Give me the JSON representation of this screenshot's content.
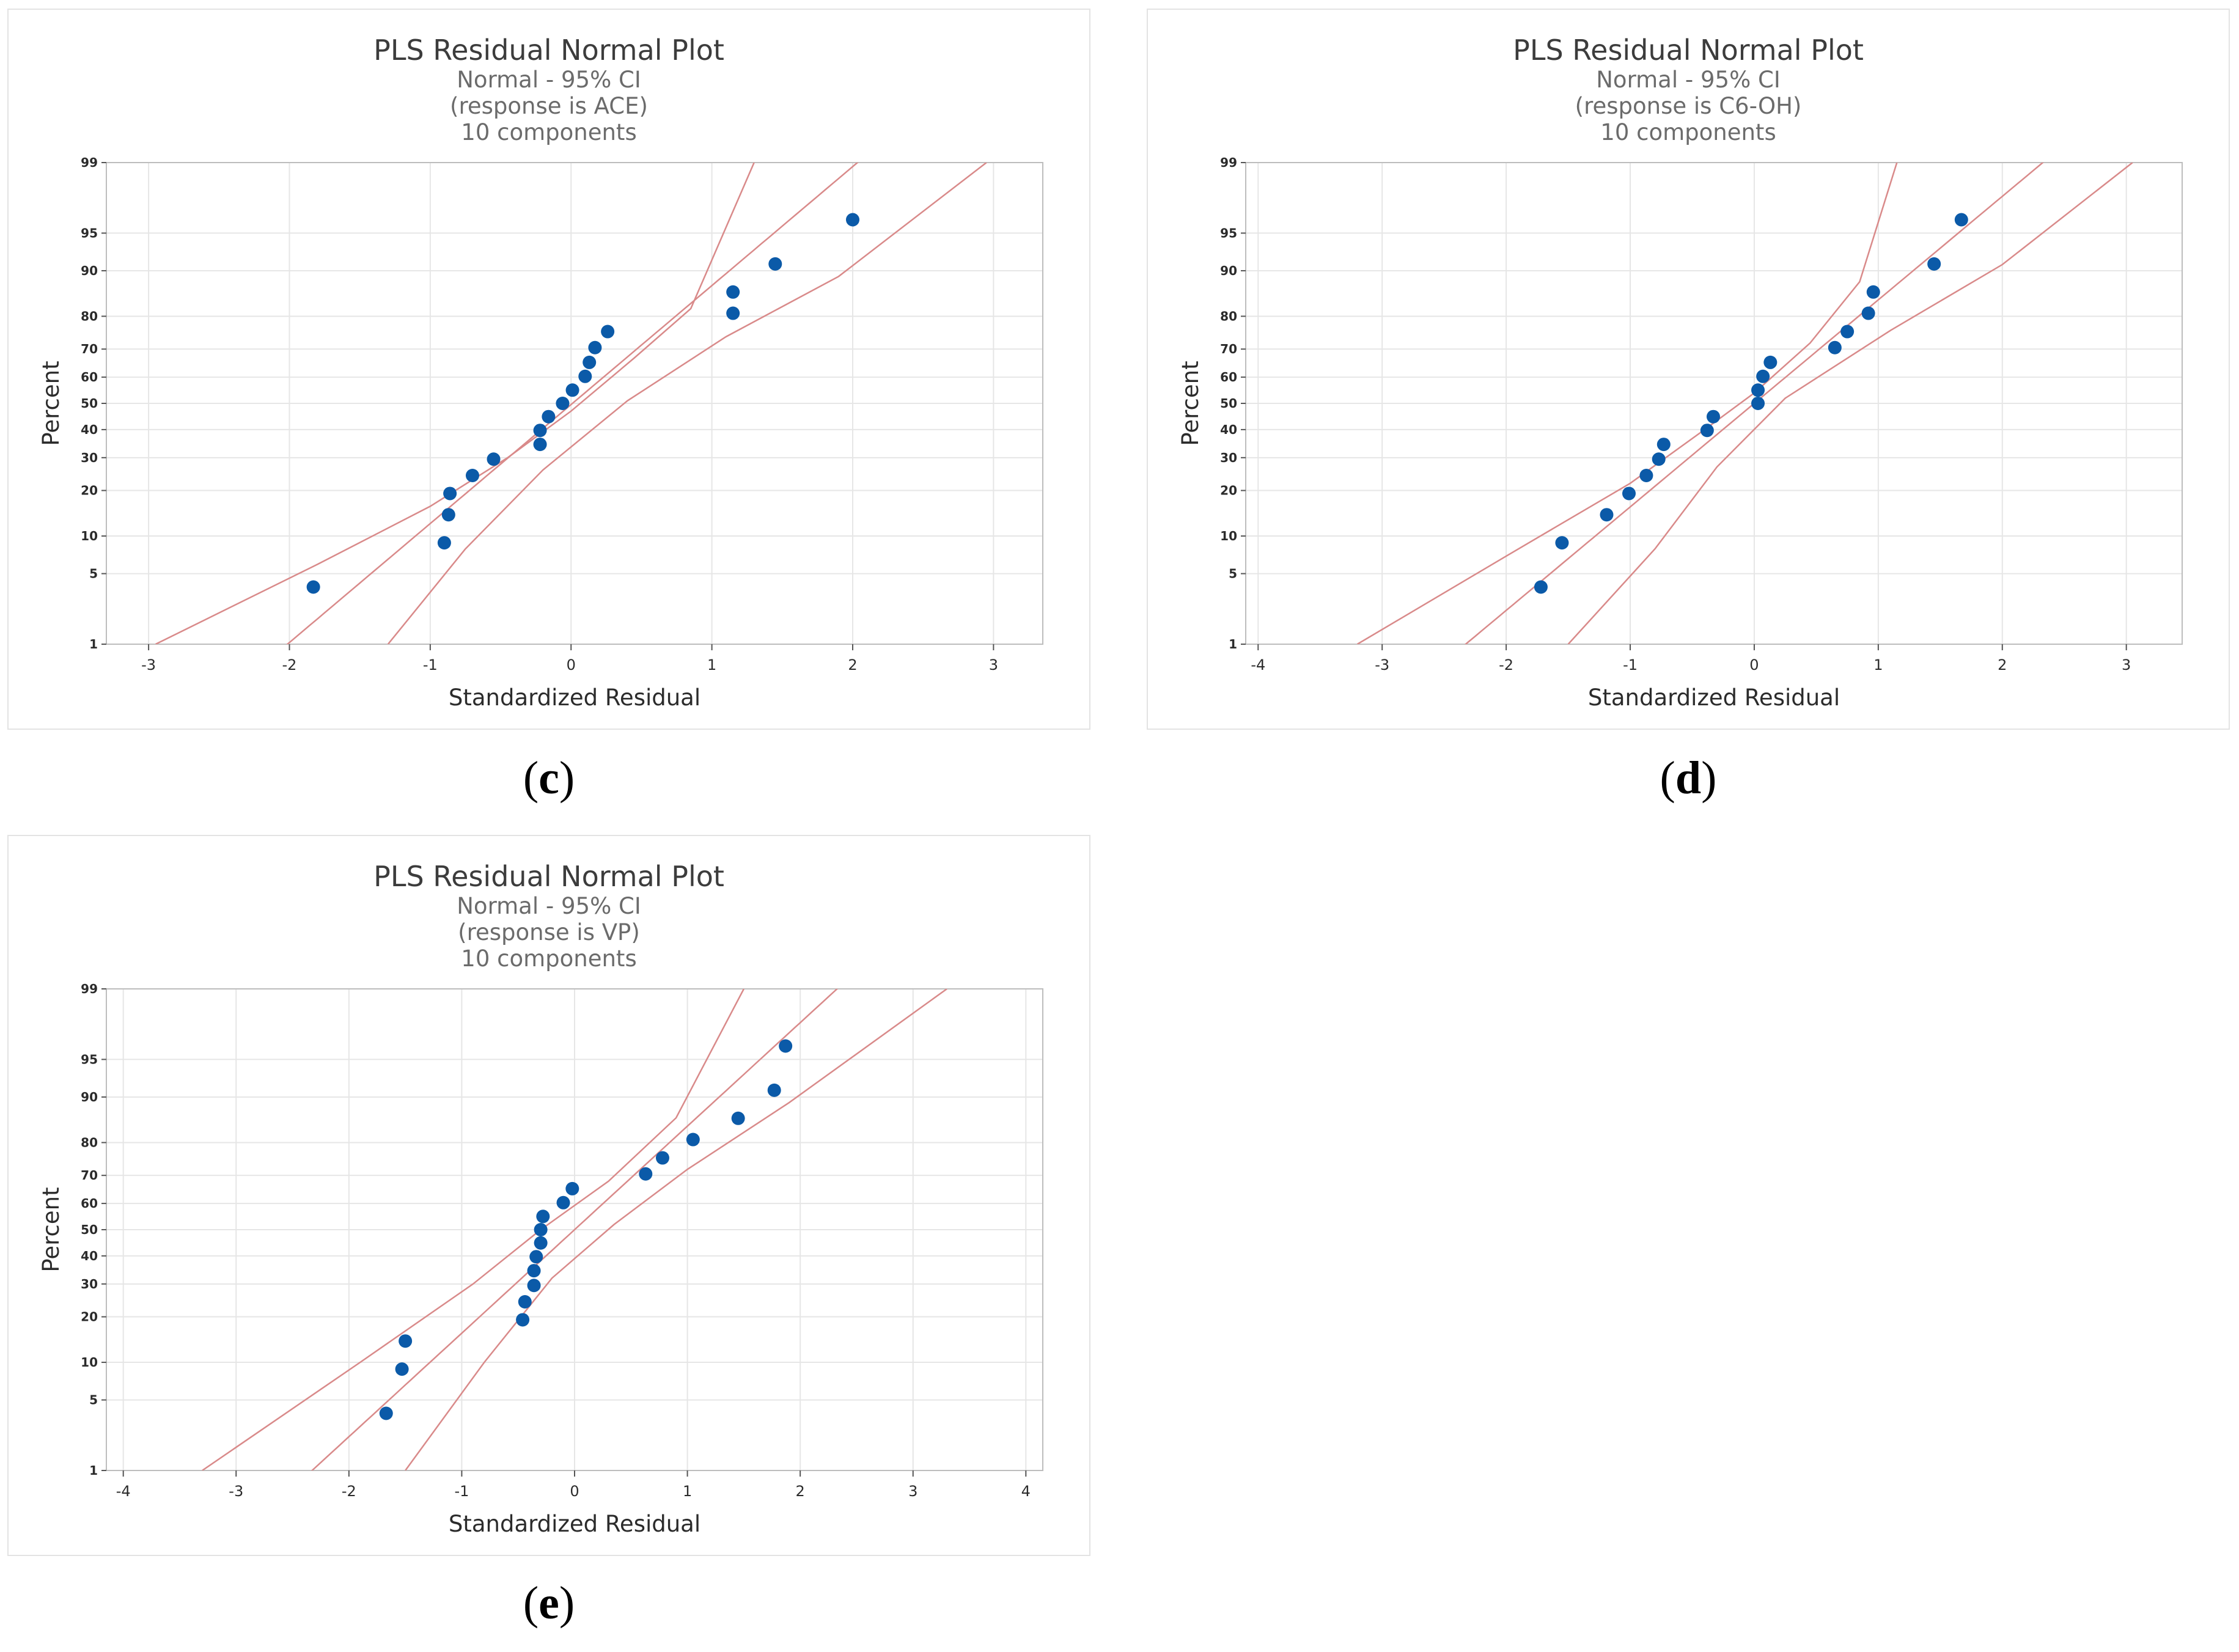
{
  "chart_data": [
    {
      "type": "scatter",
      "panel": "c",
      "title": "PLS Residual Normal Plot",
      "subtitle_lines": [
        "Normal - 95% CI",
        "(response is ACE)",
        "10 components"
      ],
      "xlabel": "Standardized Residual",
      "ylabel": "Percent",
      "xlim": [
        -3.3,
        3.35
      ],
      "xticks": [
        -3,
        -2,
        -1,
        0,
        1,
        2,
        3
      ],
      "xtick_labels": [
        "-3",
        "-2",
        "-1",
        "0",
        "1",
        "2",
        "3"
      ],
      "ylim_percent": [
        1,
        99
      ],
      "yticks": [
        1,
        5,
        10,
        20,
        30,
        40,
        50,
        60,
        70,
        80,
        90,
        95,
        99
      ],
      "ytick_labels": [
        "1",
        "5",
        "10",
        "20",
        "30",
        "40",
        "50",
        "60",
        "70",
        "80",
        "90",
        "95",
        "99"
      ],
      "fit_line": {
        "mean": 0.01,
        "sd": 0.87
      },
      "ci_points": [
        [
          -2.95,
          1
        ],
        [
          -1.8,
          6
        ],
        [
          -1.0,
          16
        ],
        [
          -0.45,
          30
        ],
        [
          0.0,
          47
        ],
        [
          0.45,
          67
        ],
        [
          0.85,
          82
        ],
        [
          1.3,
          99
        ]
      ],
      "ci_lower": [
        [
          -1.3,
          1
        ],
        [
          -0.75,
          8
        ],
        [
          -0.2,
          26
        ],
        [
          0.4,
          51
        ],
        [
          1.1,
          74
        ],
        [
          1.9,
          89
        ],
        [
          2.95,
          99
        ]
      ],
      "points": [
        {
          "x": -1.83,
          "y": 3.8
        },
        {
          "x": -0.9,
          "y": 8.9
        },
        {
          "x": -0.87,
          "y": 14.1
        },
        {
          "x": -0.86,
          "y": 19.2
        },
        {
          "x": -0.7,
          "y": 24.3
        },
        {
          "x": -0.55,
          "y": 29.5
        },
        {
          "x": -0.22,
          "y": 34.6
        },
        {
          "x": -0.22,
          "y": 39.7
        },
        {
          "x": -0.16,
          "y": 44.9
        },
        {
          "x": -0.06,
          "y": 50.0
        },
        {
          "x": 0.01,
          "y": 55.1
        },
        {
          "x": 0.1,
          "y": 60.3
        },
        {
          "x": 0.13,
          "y": 65.4
        },
        {
          "x": 0.17,
          "y": 70.5
        },
        {
          "x": 0.26,
          "y": 75.6
        },
        {
          "x": 1.15,
          "y": 80.8
        },
        {
          "x": 1.15,
          "y": 85.9
        },
        {
          "x": 1.45,
          "y": 91.1
        },
        {
          "x": 2.0,
          "y": 96.2
        }
      ],
      "caption": "c"
    },
    {
      "type": "scatter",
      "panel": "d",
      "title": "PLS Residual Normal Plot",
      "subtitle_lines": [
        "Normal - 95% CI",
        "(response is C6-OH)",
        "10 components"
      ],
      "xlabel": "Standardized Residual",
      "ylabel": "Percent",
      "xlim": [
        -4.1,
        3.45
      ],
      "xticks": [
        -4,
        -3,
        -2,
        -1,
        0,
        1,
        2,
        3
      ],
      "xtick_labels": [
        "-4",
        "-3",
        "-2",
        "-1",
        "0",
        "1",
        "2",
        "3"
      ],
      "ylim_percent": [
        1,
        99
      ],
      "yticks": [
        1,
        5,
        10,
        20,
        30,
        40,
        50,
        60,
        70,
        80,
        90,
        95,
        99
      ],
      "ytick_labels": [
        "1",
        "5",
        "10",
        "20",
        "30",
        "40",
        "50",
        "60",
        "70",
        "80",
        "90",
        "95",
        "99"
      ],
      "fit_line": {
        "mean": 0.0,
        "sd": 1.0
      },
      "ci_points": [
        [
          -3.2,
          1
        ],
        [
          -2.0,
          7
        ],
        [
          -1.0,
          22
        ],
        [
          -0.4,
          40
        ],
        [
          0.0,
          54
        ],
        [
          0.45,
          72
        ],
        [
          0.85,
          88
        ],
        [
          1.15,
          99
        ]
      ],
      "ci_lower": [
        [
          -1.5,
          1
        ],
        [
          -0.8,
          8
        ],
        [
          -0.3,
          27
        ],
        [
          0.25,
          52
        ],
        [
          1.1,
          76
        ],
        [
          2.0,
          91
        ],
        [
          3.05,
          99
        ]
      ],
      "points": [
        {
          "x": -1.72,
          "y": 3.8
        },
        {
          "x": -1.55,
          "y": 8.9
        },
        {
          "x": -1.19,
          "y": 14.1
        },
        {
          "x": -1.01,
          "y": 19.2
        },
        {
          "x": -0.87,
          "y": 24.3
        },
        {
          "x": -0.77,
          "y": 29.5
        },
        {
          "x": -0.73,
          "y": 34.6
        },
        {
          "x": -0.38,
          "y": 39.7
        },
        {
          "x": -0.33,
          "y": 44.9
        },
        {
          "x": 0.03,
          "y": 50.0
        },
        {
          "x": 0.03,
          "y": 55.1
        },
        {
          "x": 0.07,
          "y": 60.3
        },
        {
          "x": 0.13,
          "y": 65.4
        },
        {
          "x": 0.65,
          "y": 70.5
        },
        {
          "x": 0.75,
          "y": 75.6
        },
        {
          "x": 0.92,
          "y": 80.8
        },
        {
          "x": 0.96,
          "y": 85.9
        },
        {
          "x": 1.45,
          "y": 91.1
        },
        {
          "x": 1.67,
          "y": 96.2
        }
      ],
      "caption": "d"
    },
    {
      "type": "scatter",
      "panel": "e",
      "title": "PLS Residual Normal Plot",
      "subtitle_lines": [
        "Normal - 95% CI",
        "(response is VP)",
        "10 components"
      ],
      "xlabel": "Standardized Residual",
      "ylabel": "Percent",
      "xlim": [
        -4.15,
        4.15
      ],
      "xticks": [
        -4,
        -3,
        -2,
        -1,
        0,
        1,
        2,
        3,
        4
      ],
      "xtick_labels": [
        "-4",
        "-3",
        "-2",
        "-1",
        "0",
        "1",
        "2",
        "3",
        "4"
      ],
      "ylim_percent": [
        1,
        99
      ],
      "yticks": [
        1,
        5,
        10,
        20,
        30,
        40,
        50,
        60,
        70,
        80,
        90,
        95,
        99
      ],
      "ytick_labels": [
        "1",
        "5",
        "10",
        "20",
        "30",
        "40",
        "50",
        "60",
        "70",
        "80",
        "90",
        "95",
        "99"
      ],
      "fit_line": {
        "mean": 0.0,
        "sd": 1.0
      },
      "ci_points": [
        [
          -3.3,
          1
        ],
        [
          -1.9,
          10
        ],
        [
          -0.9,
          30
        ],
        [
          -0.3,
          50
        ],
        [
          0.3,
          68
        ],
        [
          0.9,
          86
        ],
        [
          1.5,
          99
        ]
      ],
      "ci_lower": [
        [
          -1.5,
          1
        ],
        [
          -0.8,
          10
        ],
        [
          -0.2,
          32
        ],
        [
          0.35,
          52
        ],
        [
          1.0,
          72
        ],
        [
          1.9,
          89
        ],
        [
          3.3,
          99
        ]
      ],
      "points": [
        {
          "x": -1.67,
          "y": 3.8
        },
        {
          "x": -1.53,
          "y": 8.9
        },
        {
          "x": -1.5,
          "y": 14.1
        },
        {
          "x": -0.46,
          "y": 19.2
        },
        {
          "x": -0.44,
          "y": 24.3
        },
        {
          "x": -0.36,
          "y": 29.5
        },
        {
          "x": -0.36,
          "y": 34.6
        },
        {
          "x": -0.34,
          "y": 39.7
        },
        {
          "x": -0.3,
          "y": 44.9
        },
        {
          "x": -0.3,
          "y": 50.0
        },
        {
          "x": -0.28,
          "y": 55.1
        },
        {
          "x": -0.1,
          "y": 60.3
        },
        {
          "x": -0.02,
          "y": 65.4
        },
        {
          "x": 0.63,
          "y": 70.5
        },
        {
          "x": 0.78,
          "y": 75.6
        },
        {
          "x": 1.05,
          "y": 80.8
        },
        {
          "x": 1.45,
          "y": 85.9
        },
        {
          "x": 1.77,
          "y": 91.1
        },
        {
          "x": 1.87,
          "y": 96.2
        }
      ],
      "caption": "e"
    }
  ],
  "colors": {
    "point": "#0b5aa8",
    "band": "#d98a8a",
    "grid": "#e6e6e6",
    "frame": "#bdbdbd"
  },
  "captions": [
    "c",
    "d",
    "e"
  ]
}
